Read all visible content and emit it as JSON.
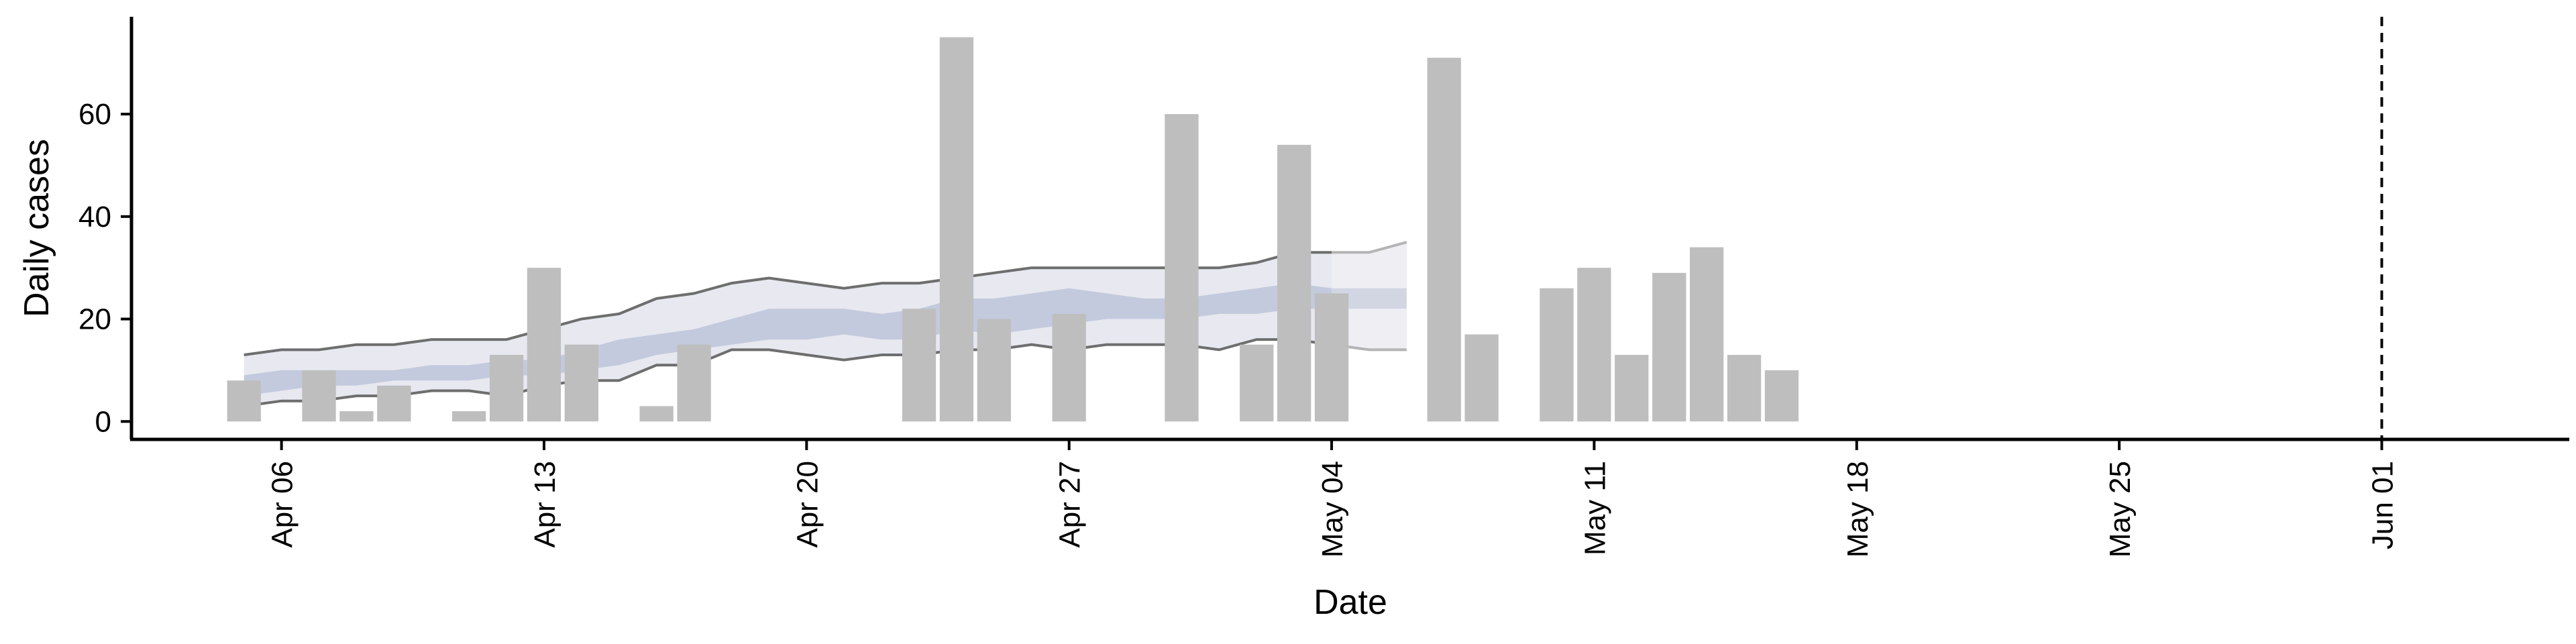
{
  "chart_data": {
    "type": "bar",
    "xlabel": "Date",
    "ylabel": "Daily cases",
    "x_range": [
      "2020-04-02",
      "2020-06-06"
    ],
    "ylim": [
      -3.5,
      79
    ],
    "y_ticks": [
      0,
      20,
      40,
      60
    ],
    "x_ticks": [
      {
        "date": "2020-04-06",
        "label": "Apr 06"
      },
      {
        "date": "2020-04-13",
        "label": "Apr 13"
      },
      {
        "date": "2020-04-20",
        "label": "Apr 20"
      },
      {
        "date": "2020-04-27",
        "label": "Apr 27"
      },
      {
        "date": "2020-05-04",
        "label": "May 04"
      },
      {
        "date": "2020-05-11",
        "label": "May 11"
      },
      {
        "date": "2020-05-18",
        "label": "May 18"
      },
      {
        "date": "2020-05-25",
        "label": "May 25"
      },
      {
        "date": "2020-06-01",
        "label": "Jun 01"
      }
    ],
    "bars": [
      {
        "date": "2020-04-05",
        "value": 8
      },
      {
        "date": "2020-04-07",
        "value": 10
      },
      {
        "date": "2020-04-08",
        "value": 2
      },
      {
        "date": "2020-04-09",
        "value": 7
      },
      {
        "date": "2020-04-11",
        "value": 2
      },
      {
        "date": "2020-04-12",
        "value": 13
      },
      {
        "date": "2020-04-13",
        "value": 30
      },
      {
        "date": "2020-04-14",
        "value": 15
      },
      {
        "date": "2020-04-16",
        "value": 3
      },
      {
        "date": "2020-04-17",
        "value": 15
      },
      {
        "date": "2020-04-23",
        "value": 22
      },
      {
        "date": "2020-04-24",
        "value": 75
      },
      {
        "date": "2020-04-25",
        "value": 20
      },
      {
        "date": "2020-04-27",
        "value": 21
      },
      {
        "date": "2020-04-30",
        "value": 60
      },
      {
        "date": "2020-05-02",
        "value": 15
      },
      {
        "date": "2020-05-03",
        "value": 54
      },
      {
        "date": "2020-05-04",
        "value": 25
      },
      {
        "date": "2020-05-07",
        "value": 71
      },
      {
        "date": "2020-05-08",
        "value": 17
      },
      {
        "date": "2020-05-10",
        "value": 26
      },
      {
        "date": "2020-05-11",
        "value": 30
      },
      {
        "date": "2020-05-12",
        "value": 13
      },
      {
        "date": "2020-05-13",
        "value": 29
      },
      {
        "date": "2020-05-14",
        "value": 34
      },
      {
        "date": "2020-05-15",
        "value": 13
      },
      {
        "date": "2020-05-16",
        "value": 10
      }
    ],
    "band_dates": [
      "2020-04-05",
      "2020-04-06",
      "2020-04-07",
      "2020-04-08",
      "2020-04-09",
      "2020-04-10",
      "2020-04-11",
      "2020-04-12",
      "2020-04-13",
      "2020-04-14",
      "2020-04-15",
      "2020-04-16",
      "2020-04-17",
      "2020-04-18",
      "2020-04-19",
      "2020-04-20",
      "2020-04-21",
      "2020-04-22",
      "2020-04-23",
      "2020-04-24",
      "2020-04-25",
      "2020-04-26",
      "2020-04-27",
      "2020-04-28",
      "2020-04-29",
      "2020-04-30",
      "2020-05-01",
      "2020-05-02",
      "2020-05-03",
      "2020-05-04",
      "2020-05-05",
      "2020-05-06"
    ],
    "outer_band": {
      "upper": [
        13,
        14,
        14,
        15,
        15,
        16,
        16,
        16,
        18,
        20,
        21,
        24,
        25,
        27,
        28,
        27,
        26,
        27,
        27,
        28,
        29,
        30,
        30,
        30,
        30,
        30,
        30,
        31,
        33,
        33,
        33,
        35
      ],
      "lower": [
        3,
        4,
        4,
        5,
        5,
        6,
        6,
        5,
        7,
        8,
        8,
        11,
        11,
        14,
        14,
        13,
        12,
        13,
        13,
        14,
        14,
        15,
        14,
        15,
        15,
        15,
        14,
        16,
        16,
        15,
        14,
        14
      ]
    },
    "inner_band": {
      "upper": [
        9,
        10,
        10,
        10,
        10,
        11,
        11,
        12,
        12,
        14,
        16,
        17,
        18,
        20,
        22,
        22,
        22,
        21,
        22,
        24,
        24,
        25,
        26,
        25,
        24,
        24,
        25,
        26,
        27,
        26,
        26,
        26
      ],
      "lower": [
        5,
        6,
        7,
        7,
        8,
        8,
        8,
        9,
        9,
        10,
        11,
        13,
        14,
        15,
        16,
        16,
        17,
        16,
        16,
        18,
        17,
        18,
        19,
        20,
        20,
        20,
        21,
        21,
        22,
        22,
        22,
        22
      ]
    },
    "forecast_start": "2020-05-04",
    "reference_line_date": "2020-06-01",
    "colors": {
      "bar": "#bebebe",
      "outer_band": "#e7e8f0",
      "outer_band_forecast": "#eeeef3",
      "inner_band": "#c3cadd",
      "inner_band_forecast": "#d2d6e3",
      "band_edge": "#6e6e6e",
      "band_edge_forecast": "#b4b4b4",
      "reference_line": "#000000"
    },
    "reference_line_style": "dashed"
  }
}
